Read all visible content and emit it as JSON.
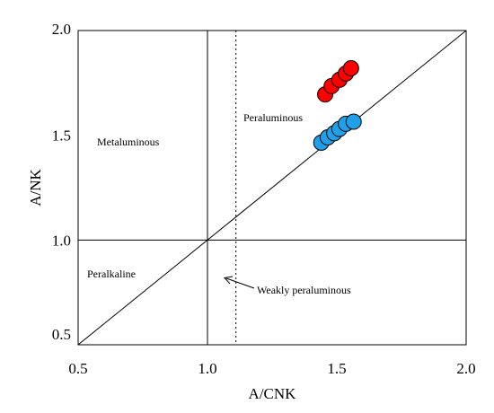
{
  "chart_data": {
    "type": "scatter",
    "title": "",
    "xlabel": "A/CNK",
    "ylabel": "A/NK",
    "xlim": [
      0.5,
      2.0
    ],
    "ylim": [
      0.5,
      2.0
    ],
    "x_ticks": [
      0.5,
      1.0,
      1.5,
      2.0
    ],
    "y_ticks": [
      0.5,
      1.0,
      1.5,
      2.0
    ],
    "x_tick_labels": [
      "0.5",
      "1.0",
      "1.5",
      "2.0"
    ],
    "y_tick_labels": [
      "0.5",
      "1.0",
      "1.5",
      "2.0"
    ],
    "grid": false,
    "reference_lines": {
      "vertical_solid_x": 1.0,
      "vertical_dotted_x": 1.11,
      "horizontal_solid_y": 1.0,
      "diagonal": {
        "from": [
          0.5,
          0.5
        ],
        "to": [
          2.0,
          2.0
        ]
      }
    },
    "regions": {
      "metaluminous": "Metaluminous",
      "peraluminous": "Peraluminous",
      "peralkaline": "Peralkaline",
      "weakly_peraluminous": "Weakly peraluminous"
    },
    "series": [
      {
        "color": "#ff0000",
        "points": [
          {
            "x": 1.455,
            "y": 1.695
          },
          {
            "x": 1.48,
            "y": 1.735
          },
          {
            "x": 1.51,
            "y": 1.765
          },
          {
            "x": 1.535,
            "y": 1.795
          },
          {
            "x": 1.555,
            "y": 1.82
          }
        ]
      },
      {
        "color": "#1fa0e8",
        "points": [
          {
            "x": 1.44,
            "y": 1.465
          },
          {
            "x": 1.465,
            "y": 1.49
          },
          {
            "x": 1.49,
            "y": 1.51
          },
          {
            "x": 1.51,
            "y": 1.53
          },
          {
            "x": 1.535,
            "y": 1.555
          },
          {
            "x": 1.565,
            "y": 1.565
          }
        ]
      }
    ]
  }
}
